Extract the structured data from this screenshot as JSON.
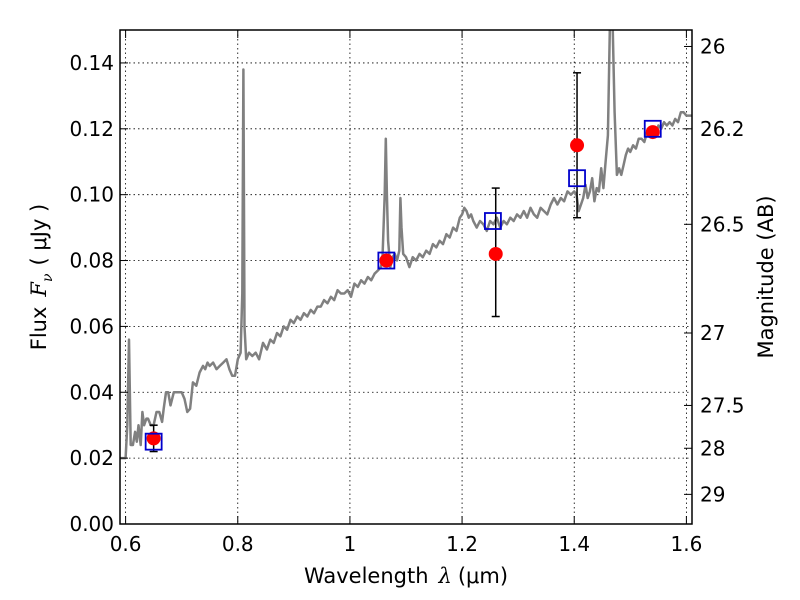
{
  "chart_data": {
    "type": "scatter",
    "title": "",
    "xlabel": {
      "prefix": "Wavelength",
      "symbol": "λ",
      "unit": "(μm)"
    },
    "ylabel": {
      "prefix": "Flux",
      "symbol": "F",
      "subscript": "ν",
      "unit": "( μJy )"
    },
    "y2label": "Magnitude (AB)",
    "xlim": [
      0.59,
      1.61
    ],
    "ylim": [
      0.0,
      0.15
    ],
    "grid": true,
    "x_ticks": [
      0.6,
      0.8,
      1.0,
      1.2,
      1.4,
      1.6
    ],
    "x_tick_labels": [
      "0.6",
      "0.8",
      "1",
      "1.2",
      "1.4",
      "1.6"
    ],
    "y_ticks": [
      0.0,
      0.02,
      0.04,
      0.06,
      0.08,
      0.1,
      0.12,
      0.14
    ],
    "y_tick_labels": [
      "0.00",
      "0.02",
      "0.04",
      "0.06",
      "0.08",
      "0.10",
      "0.12",
      "0.14"
    ],
    "y2_ticks": [
      {
        "label": "26",
        "flux": 0.145
      },
      {
        "label": "26.2",
        "flux": 0.12
      },
      {
        "label": "26.5",
        "flux": 0.091
      },
      {
        "label": "27",
        "flux": 0.058
      },
      {
        "label": "27.5",
        "flux": 0.036
      },
      {
        "label": "28",
        "flux": 0.023
      },
      {
        "label": "29",
        "flux": 0.009
      }
    ],
    "series": [
      {
        "name": "model spectrum",
        "kind": "line",
        "color": "#808080",
        "points": [
          [
            0.59,
            0.02
          ],
          [
            0.6,
            0.02
          ],
          [
            0.603,
            0.03
          ],
          [
            0.606,
            0.056
          ],
          [
            0.609,
            0.024
          ],
          [
            0.613,
            0.024
          ],
          [
            0.617,
            0.028
          ],
          [
            0.62,
            0.025
          ],
          [
            0.623,
            0.03
          ],
          [
            0.627,
            0.024
          ],
          [
            0.63,
            0.034
          ],
          [
            0.633,
            0.03
          ],
          [
            0.637,
            0.032
          ],
          [
            0.64,
            0.032
          ],
          [
            0.645,
            0.03
          ],
          [
            0.65,
            0.03
          ],
          [
            0.655,
            0.034
          ],
          [
            0.66,
            0.034
          ],
          [
            0.665,
            0.031
          ],
          [
            0.668,
            0.035
          ],
          [
            0.672,
            0.04
          ],
          [
            0.676,
            0.04
          ],
          [
            0.68,
            0.036
          ],
          [
            0.686,
            0.04
          ],
          [
            0.692,
            0.04
          ],
          [
            0.7,
            0.04
          ],
          [
            0.705,
            0.038
          ],
          [
            0.71,
            0.034
          ],
          [
            0.715,
            0.035
          ],
          [
            0.72,
            0.043
          ],
          [
            0.726,
            0.042
          ],
          [
            0.732,
            0.046
          ],
          [
            0.738,
            0.048
          ],
          [
            0.742,
            0.047
          ],
          [
            0.746,
            0.049
          ],
          [
            0.75,
            0.048
          ],
          [
            0.756,
            0.049
          ],
          [
            0.762,
            0.047
          ],
          [
            0.768,
            0.048
          ],
          [
            0.774,
            0.049
          ],
          [
            0.78,
            0.05
          ],
          [
            0.785,
            0.047
          ],
          [
            0.79,
            0.045
          ],
          [
            0.795,
            0.045
          ],
          [
            0.8,
            0.05
          ],
          [
            0.805,
            0.052
          ],
          [
            0.808,
            0.07
          ],
          [
            0.81,
            0.138
          ],
          [
            0.812,
            0.06
          ],
          [
            0.815,
            0.05
          ],
          [
            0.82,
            0.052
          ],
          [
            0.826,
            0.051
          ],
          [
            0.832,
            0.052
          ],
          [
            0.838,
            0.05
          ],
          [
            0.845,
            0.055
          ],
          [
            0.852,
            0.053
          ],
          [
            0.858,
            0.056
          ],
          [
            0.864,
            0.055
          ],
          [
            0.87,
            0.058
          ],
          [
            0.876,
            0.057
          ],
          [
            0.882,
            0.06
          ],
          [
            0.888,
            0.059
          ],
          [
            0.894,
            0.062
          ],
          [
            0.9,
            0.061
          ],
          [
            0.906,
            0.063
          ],
          [
            0.912,
            0.062
          ],
          [
            0.918,
            0.064
          ],
          [
            0.924,
            0.063
          ],
          [
            0.93,
            0.065
          ],
          [
            0.936,
            0.064
          ],
          [
            0.942,
            0.066
          ],
          [
            0.948,
            0.066
          ],
          [
            0.954,
            0.068
          ],
          [
            0.96,
            0.067
          ],
          [
            0.966,
            0.069
          ],
          [
            0.972,
            0.068
          ],
          [
            0.978,
            0.071
          ],
          [
            0.984,
            0.07
          ],
          [
            0.99,
            0.07
          ],
          [
            0.996,
            0.071
          ],
          [
            1.002,
            0.069
          ],
          [
            1.008,
            0.073
          ],
          [
            1.014,
            0.072
          ],
          [
            1.02,
            0.074
          ],
          [
            1.026,
            0.073
          ],
          [
            1.032,
            0.075
          ],
          [
            1.038,
            0.074
          ],
          [
            1.044,
            0.076
          ],
          [
            1.05,
            0.077
          ],
          [
            1.055,
            0.078
          ],
          [
            1.058,
            0.08
          ],
          [
            1.062,
            0.1
          ],
          [
            1.064,
            0.117
          ],
          [
            1.066,
            0.1
          ],
          [
            1.068,
            0.086
          ],
          [
            1.072,
            0.078
          ],
          [
            1.076,
            0.081
          ],
          [
            1.08,
            0.082
          ],
          [
            1.084,
            0.08
          ],
          [
            1.088,
            0.083
          ],
          [
            1.09,
            0.099
          ],
          [
            1.092,
            0.09
          ],
          [
            1.095,
            0.082
          ],
          [
            1.1,
            0.081
          ],
          [
            1.106,
            0.078
          ],
          [
            1.112,
            0.081
          ],
          [
            1.118,
            0.08
          ],
          [
            1.124,
            0.082
          ],
          [
            1.13,
            0.081
          ],
          [
            1.136,
            0.083
          ],
          [
            1.142,
            0.082
          ],
          [
            1.148,
            0.085
          ],
          [
            1.154,
            0.084
          ],
          [
            1.16,
            0.086
          ],
          [
            1.166,
            0.085
          ],
          [
            1.172,
            0.088
          ],
          [
            1.178,
            0.087
          ],
          [
            1.184,
            0.09
          ],
          [
            1.19,
            0.089
          ],
          [
            1.196,
            0.093
          ],
          [
            1.2,
            0.094
          ],
          [
            1.204,
            0.096
          ],
          [
            1.208,
            0.095
          ],
          [
            1.212,
            0.093
          ],
          [
            1.216,
            0.094
          ],
          [
            1.22,
            0.092
          ],
          [
            1.226,
            0.09
          ],
          [
            1.232,
            0.092
          ],
          [
            1.238,
            0.091
          ],
          [
            1.244,
            0.089
          ],
          [
            1.25,
            0.092
          ],
          [
            1.256,
            0.091
          ],
          [
            1.262,
            0.093
          ],
          [
            1.268,
            0.09
          ],
          [
            1.274,
            0.092
          ],
          [
            1.28,
            0.091
          ],
          [
            1.286,
            0.093
          ],
          [
            1.292,
            0.092
          ],
          [
            1.298,
            0.094
          ],
          [
            1.304,
            0.093
          ],
          [
            1.31,
            0.095
          ],
          [
            1.316,
            0.093
          ],
          [
            1.322,
            0.096
          ],
          [
            1.328,
            0.094
          ],
          [
            1.334,
            0.093
          ],
          [
            1.34,
            0.096
          ],
          [
            1.346,
            0.095
          ],
          [
            1.352,
            0.094
          ],
          [
            1.358,
            0.097
          ],
          [
            1.364,
            0.099
          ],
          [
            1.37,
            0.097
          ],
          [
            1.376,
            0.099
          ],
          [
            1.382,
            0.098
          ],
          [
            1.388,
            0.101
          ],
          [
            1.394,
            0.1
          ],
          [
            1.4,
            0.101
          ],
          [
            1.404,
            0.1
          ],
          [
            1.408,
            0.095
          ],
          [
            1.412,
            0.097
          ],
          [
            1.416,
            0.099
          ],
          [
            1.42,
            0.103
          ],
          [
            1.424,
            0.099
          ],
          [
            1.428,
            0.101
          ],
          [
            1.432,
            0.105
          ],
          [
            1.436,
            0.098
          ],
          [
            1.44,
            0.102
          ],
          [
            1.444,
            0.101
          ],
          [
            1.448,
            0.108
          ],
          [
            1.452,
            0.102
          ],
          [
            1.456,
            0.11
          ],
          [
            1.46,
            0.118
          ],
          [
            1.464,
            0.155
          ],
          [
            1.468,
            0.155
          ],
          [
            1.472,
            0.125
          ],
          [
            1.476,
            0.106
          ],
          [
            1.48,
            0.108
          ],
          [
            1.484,
            0.106
          ],
          [
            1.488,
            0.109
          ],
          [
            1.492,
            0.112
          ],
          [
            1.496,
            0.114
          ],
          [
            1.5,
            0.113
          ],
          [
            1.505,
            0.115
          ],
          [
            1.51,
            0.114
          ],
          [
            1.515,
            0.117
          ],
          [
            1.52,
            0.117
          ],
          [
            1.525,
            0.116
          ],
          [
            1.53,
            0.119
          ],
          [
            1.535,
            0.118
          ],
          [
            1.54,
            0.119
          ],
          [
            1.545,
            0.118
          ],
          [
            1.55,
            0.121
          ],
          [
            1.555,
            0.12
          ],
          [
            1.56,
            0.122
          ],
          [
            1.565,
            0.121
          ],
          [
            1.57,
            0.122
          ],
          [
            1.575,
            0.121
          ],
          [
            1.58,
            0.123
          ],
          [
            1.585,
            0.122
          ],
          [
            1.59,
            0.125
          ],
          [
            1.595,
            0.125
          ],
          [
            1.6,
            0.124
          ],
          [
            1.61,
            0.124
          ]
        ]
      },
      {
        "name": "observed photometry",
        "kind": "points",
        "color": "#ff0000",
        "points": [
          {
            "x": 0.65,
            "y": 0.026,
            "err": [
              0.022,
              0.03
            ]
          },
          {
            "x": 1.065,
            "y": 0.08,
            "err": null
          },
          {
            "x": 1.26,
            "y": 0.082,
            "err": [
              0.063,
              0.102
            ]
          },
          {
            "x": 1.405,
            "y": 0.115,
            "err": [
              0.093,
              0.137
            ]
          },
          {
            "x": 1.54,
            "y": 0.119,
            "err": null
          }
        ]
      },
      {
        "name": "model photometry",
        "kind": "open_squares",
        "color": "#0000cc",
        "points": [
          {
            "x": 0.65,
            "y": 0.025
          },
          {
            "x": 1.065,
            "y": 0.08
          },
          {
            "x": 1.255,
            "y": 0.092
          },
          {
            "x": 1.405,
            "y": 0.105
          },
          {
            "x": 1.54,
            "y": 0.12
          }
        ]
      }
    ]
  }
}
